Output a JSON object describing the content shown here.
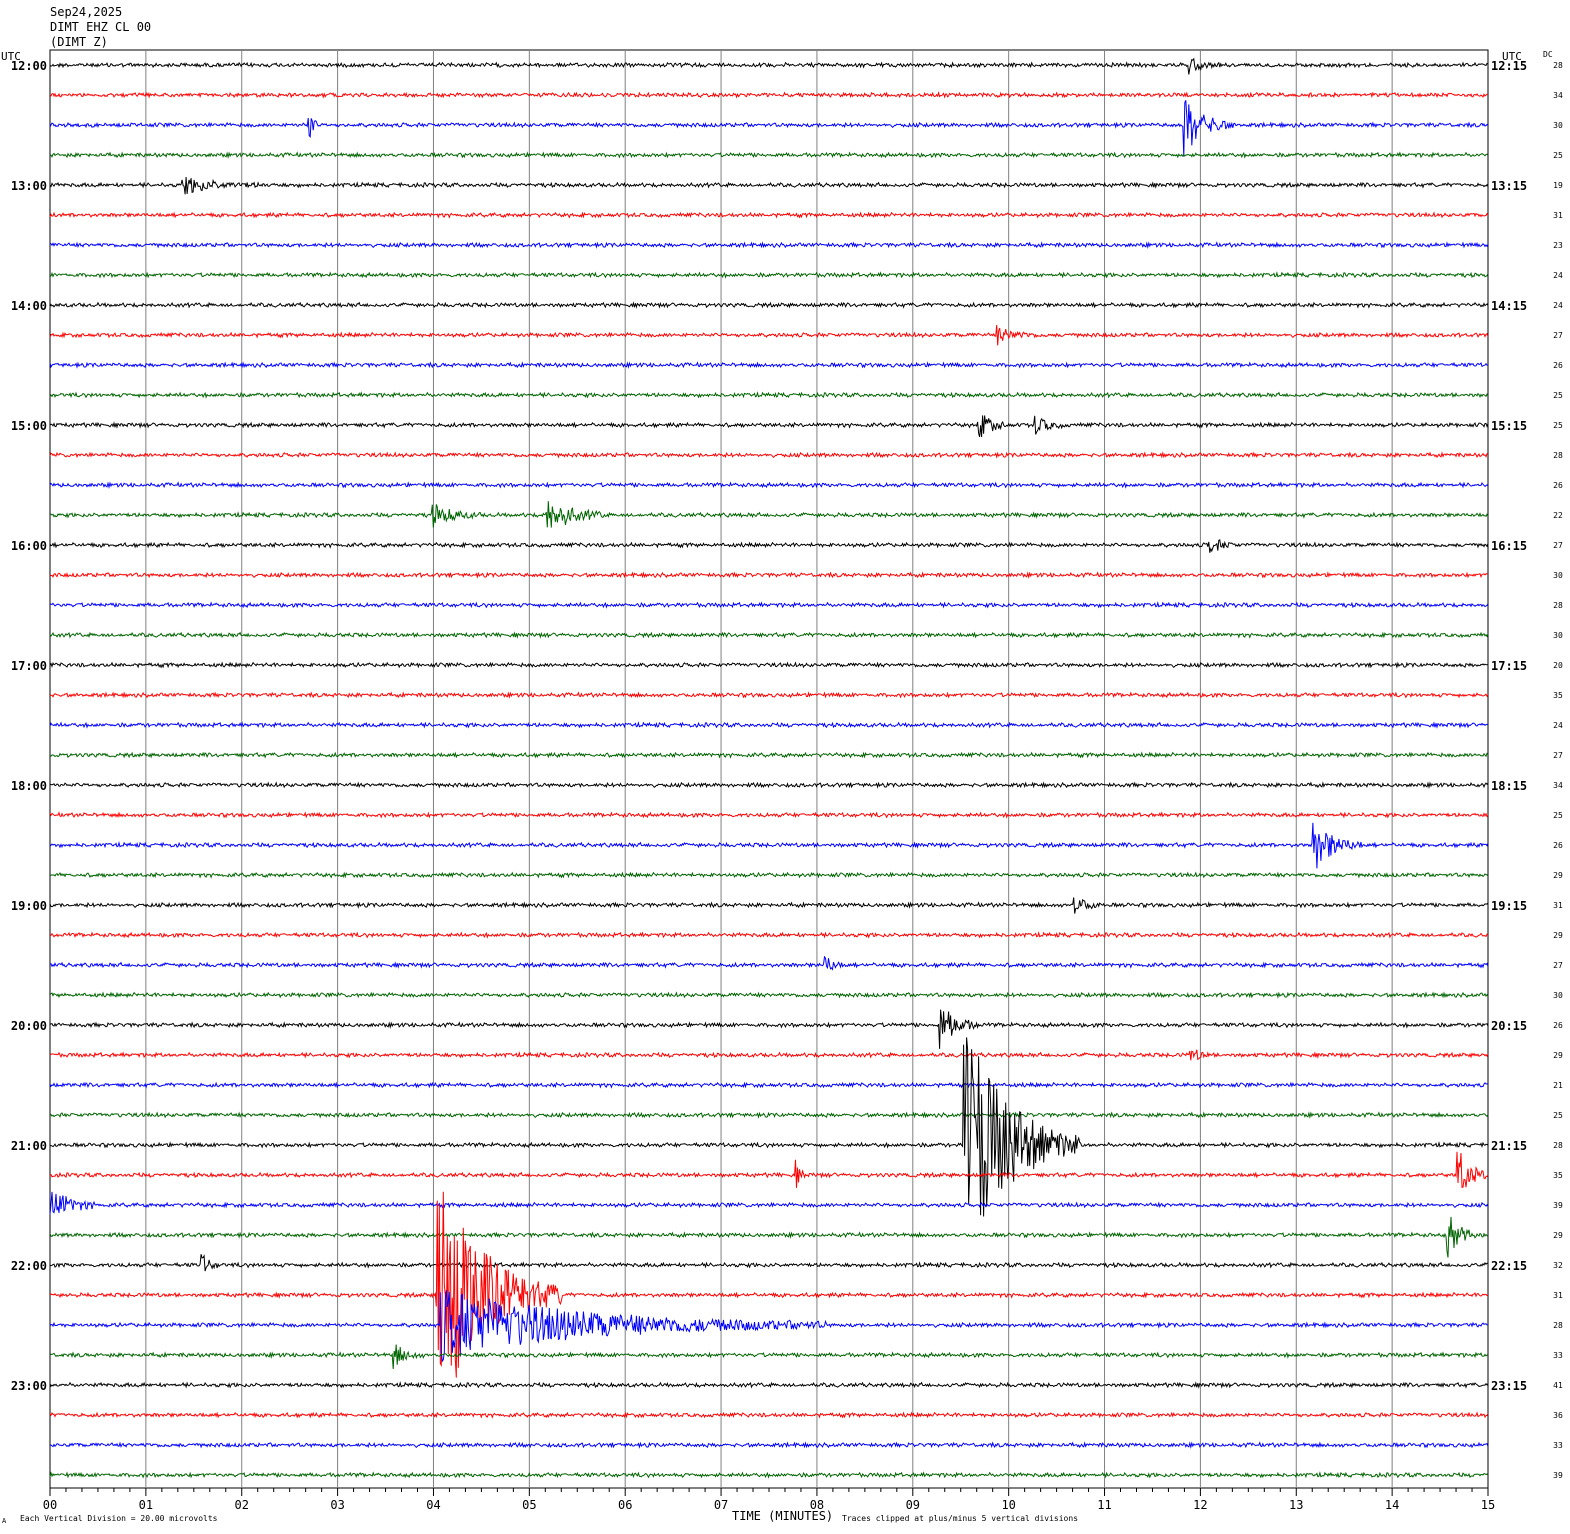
{
  "header": {
    "date": "Sep24,2025",
    "channel": "DIMT EHZ CL 00",
    "component": "(DIMT Z)"
  },
  "labels": {
    "utc_left": "UTC",
    "utc_right": "UTC",
    "dc": "DC",
    "x_axis_title": "TIME (MINUTES)",
    "scale_note": "Each Vertical Division =   20.00 microvolts",
    "clip_note": "Traces clipped at plus/minus 5 vertical divisions",
    "corner_mark": "A"
  },
  "colors": {
    "cycle": [
      "#000000",
      "#ff0000",
      "#0000ff",
      "#006400"
    ],
    "grid": "#808080"
  },
  "chart_data": {
    "type": "line",
    "title": "",
    "xlabel": "TIME (MINUTES)",
    "xlim": [
      0,
      15
    ],
    "x_ticks": [
      "00",
      "01",
      "02",
      "03",
      "04",
      "05",
      "06",
      "07",
      "08",
      "09",
      "10",
      "11",
      "12",
      "13",
      "14",
      "15"
    ],
    "left_time_labels": [
      "12:00",
      "13:00",
      "14:00",
      "15:00",
      "16:00",
      "17:00",
      "18:00",
      "19:00",
      "20:00",
      "21:00",
      "22:00",
      "23:00"
    ],
    "right_time_labels": [
      "12:15",
      "13:15",
      "14:15",
      "15:15",
      "16:15",
      "17:15",
      "18:15",
      "19:15",
      "20:15",
      "21:15",
      "22:15",
      "23:15"
    ],
    "dc_values": [
      28,
      34,
      30,
      25,
      19,
      31,
      23,
      24,
      24,
      27,
      26,
      25,
      25,
      28,
      26,
      22,
      27,
      30,
      28,
      30,
      20,
      35,
      24,
      27,
      34,
      25,
      26,
      29,
      31,
      29,
      27,
      30,
      26,
      29,
      21,
      25,
      28,
      35,
      39,
      29,
      32,
      31,
      28,
      33,
      41,
      36,
      33,
      39
    ],
    "events": [
      {
        "trace": 0,
        "minute": 11.9,
        "amp": 0.25,
        "dur": 0.3
      },
      {
        "trace": 2,
        "minute": 2.7,
        "amp": 0.6,
        "dur": 0.1
      },
      {
        "trace": 2,
        "minute": 11.85,
        "amp": 1.0,
        "dur": 0.5
      },
      {
        "trace": 4,
        "minute": 1.4,
        "amp": 0.3,
        "dur": 0.9
      },
      {
        "trace": 9,
        "minute": 9.9,
        "amp": 0.3,
        "dur": 0.4
      },
      {
        "trace": 12,
        "minute": 9.7,
        "amp": 0.5,
        "dur": 0.3
      },
      {
        "trace": 12,
        "minute": 10.3,
        "amp": 0.3,
        "dur": 0.3
      },
      {
        "trace": 15,
        "minute": 4.0,
        "amp": 0.4,
        "dur": 0.5
      },
      {
        "trace": 15,
        "minute": 5.2,
        "amp": 0.7,
        "dur": 0.6
      },
      {
        "trace": 16,
        "minute": 12.1,
        "amp": 0.3,
        "dur": 0.3
      },
      {
        "trace": 26,
        "minute": 13.2,
        "amp": 0.9,
        "dur": 0.5
      },
      {
        "trace": 28,
        "minute": 10.7,
        "amp": 0.3,
        "dur": 0.3
      },
      {
        "trace": 30,
        "minute": 8.1,
        "amp": 0.3,
        "dur": 0.2
      },
      {
        "trace": 32,
        "minute": 9.3,
        "amp": 0.8,
        "dur": 0.4
      },
      {
        "trace": 33,
        "minute": 11.9,
        "amp": 0.3,
        "dur": 0.2
      },
      {
        "trace": 36,
        "minute": 9.55,
        "amp": 4.5,
        "dur": 1.2
      },
      {
        "trace": 37,
        "minute": 7.8,
        "amp": 0.3,
        "dur": 0.1
      },
      {
        "trace": 37,
        "minute": 14.7,
        "amp": 0.9,
        "dur": 0.3
      },
      {
        "trace": 38,
        "minute": 0.0,
        "amp": 0.7,
        "dur": 0.5
      },
      {
        "trace": 39,
        "minute": 14.6,
        "amp": 0.7,
        "dur": 0.3
      },
      {
        "trace": 40,
        "minute": 1.6,
        "amp": 0.3,
        "dur": 0.2
      },
      {
        "trace": 41,
        "minute": 4.05,
        "amp": 4.5,
        "dur": 1.3
      },
      {
        "trace": 42,
        "minute": 4.1,
        "amp": 1.3,
        "dur": 4.0
      },
      {
        "trace": 43,
        "minute": 3.6,
        "amp": 0.4,
        "dur": 0.3
      }
    ]
  }
}
